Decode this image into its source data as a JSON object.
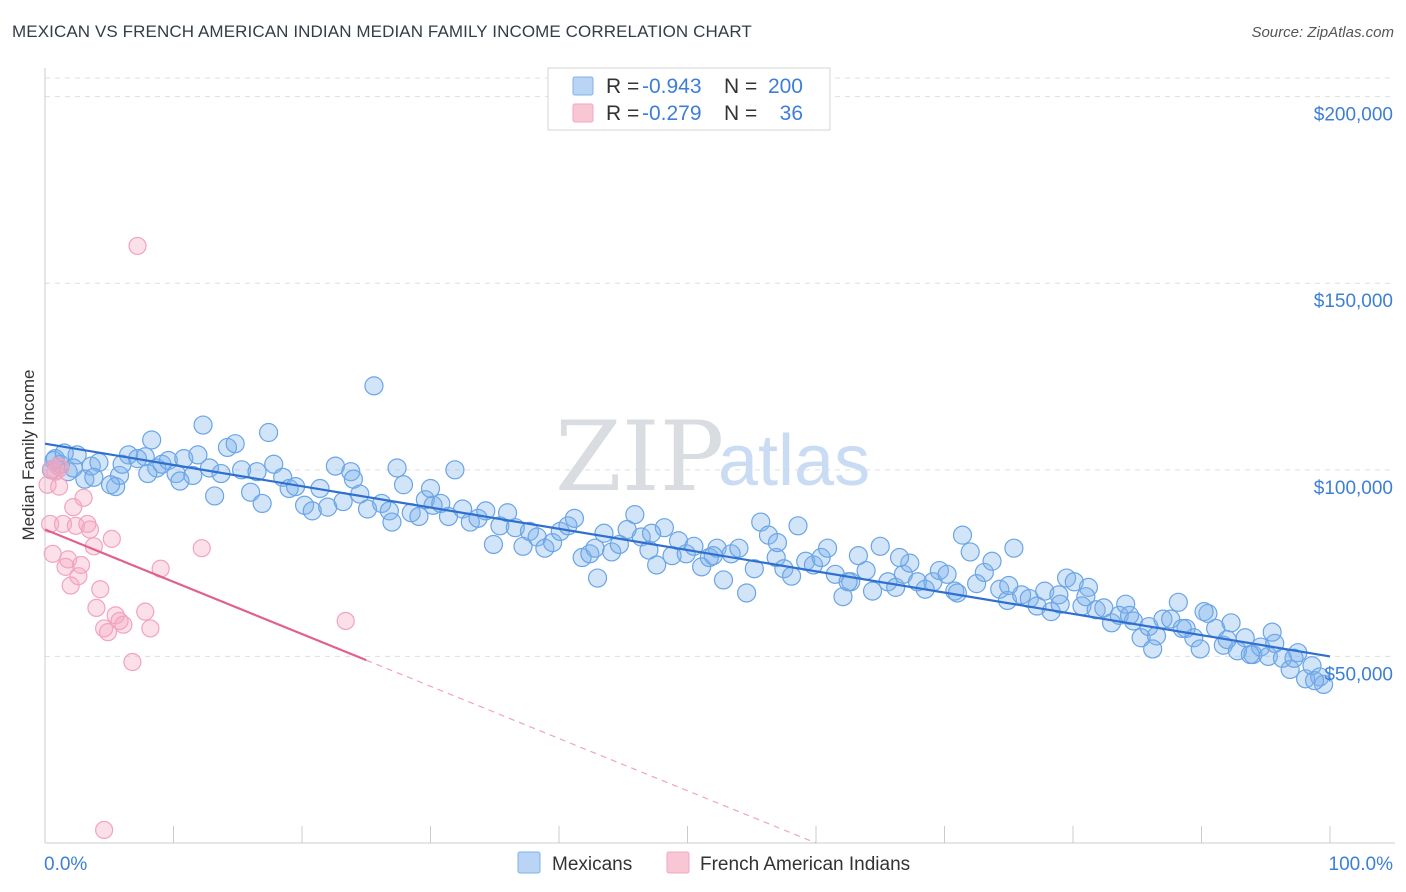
{
  "header": {
    "title": "MEXICAN VS FRENCH AMERICAN INDIAN MEDIAN FAMILY INCOME CORRELATION CHART",
    "source": "Source: ZipAtlas.com"
  },
  "watermark": {
    "zip": "ZIP",
    "atlas": "atlas"
  },
  "legend_top": {
    "rows": [
      {
        "r_label": "R = ",
        "r_value": "-0.943",
        "n_label": "N = ",
        "n_value": "200",
        "color": "#7fb1ea"
      },
      {
        "r_label": "R = ",
        "r_value": "-0.279",
        "n_label": "N = ",
        "n_value": "36",
        "color": "#f3a6c0"
      }
    ]
  },
  "legend_bottom": {
    "items": [
      {
        "label": "Mexicans",
        "color": "#7fb1ea"
      },
      {
        "label": "French American Indians",
        "color": "#f3a6c0"
      }
    ]
  },
  "chart_data": {
    "type": "scatter",
    "title": "MEXICAN VS FRENCH AMERICAN INDIAN MEDIAN FAMILY INCOME CORRELATION CHART",
    "xlabel": "",
    "ylabel": "Median Family Income",
    "xlim": [
      0,
      100
    ],
    "ylim": [
      0,
      205000
    ],
    "x_tick_labels": {
      "left": "0.0%",
      "right": "100.0%"
    },
    "y_ticks": [
      {
        "value": 50000,
        "label": "$50,000"
      },
      {
        "value": 100000,
        "label": "$100,000"
      },
      {
        "value": 150000,
        "label": "$150,000"
      },
      {
        "value": 200000,
        "label": "$200,000"
      }
    ],
    "grid": true,
    "legend_position": "top-center",
    "colors": {
      "mexicans": "#6aa5e6",
      "french": "#f2a3bd",
      "mex_line": "#2f6fd0",
      "fr_line": "#e2608d"
    },
    "series": [
      {
        "name": "Mexicans",
        "r": -0.943,
        "n": 200,
        "trend": {
          "x0": 0,
          "y0": 107000,
          "x1": 100,
          "y1": 50000
        },
        "points": [
          [
            0.5,
            100000
          ],
          [
            0.8,
            103000
          ],
          [
            1.2,
            101500
          ],
          [
            1.8,
            99500
          ],
          [
            2.5,
            104000
          ],
          [
            3.1,
            97500
          ],
          [
            3.6,
            101000
          ],
          [
            4.2,
            102000
          ],
          [
            5.5,
            95500
          ],
          [
            5.8,
            98500
          ],
          [
            6.5,
            104000
          ],
          [
            7.2,
            103000
          ],
          [
            7.8,
            103500
          ],
          [
            8.3,
            108000
          ],
          [
            8.7,
            100500
          ],
          [
            9.1,
            101500
          ],
          [
            9.6,
            102500
          ],
          [
            10.2,
            99000
          ],
          [
            10.8,
            103000
          ],
          [
            11.5,
            98500
          ],
          [
            11.9,
            104000
          ],
          [
            12.3,
            112000
          ],
          [
            12.8,
            100500
          ],
          [
            13.2,
            93000
          ],
          [
            13.7,
            99000
          ],
          [
            14.2,
            106000
          ],
          [
            14.8,
            107000
          ],
          [
            15.3,
            100000
          ],
          [
            16.0,
            94000
          ],
          [
            16.5,
            99500
          ],
          [
            16.9,
            91000
          ],
          [
            17.4,
            110000
          ],
          [
            17.8,
            101500
          ],
          [
            18.5,
            98000
          ],
          [
            19.0,
            95000
          ],
          [
            19.5,
            95500
          ],
          [
            20.2,
            90500
          ],
          [
            20.8,
            89000
          ],
          [
            21.4,
            95000
          ],
          [
            22.0,
            90000
          ],
          [
            22.6,
            101000
          ],
          [
            23.2,
            91500
          ],
          [
            23.8,
            99500
          ],
          [
            24.5,
            93500
          ],
          [
            25.1,
            89500
          ],
          [
            25.6,
            122500
          ],
          [
            26.2,
            91000
          ],
          [
            26.8,
            89000
          ],
          [
            27.4,
            100500
          ],
          [
            27.9,
            96000
          ],
          [
            28.5,
            88500
          ],
          [
            29.1,
            87500
          ],
          [
            29.6,
            92000
          ],
          [
            30.2,
            90500
          ],
          [
            30.8,
            91000
          ],
          [
            31.4,
            87500
          ],
          [
            31.9,
            100000
          ],
          [
            32.5,
            89500
          ],
          [
            33.1,
            86000
          ],
          [
            33.7,
            87000
          ],
          [
            34.3,
            89000
          ],
          [
            34.9,
            80000
          ],
          [
            35.4,
            85000
          ],
          [
            36.0,
            88500
          ],
          [
            36.6,
            84500
          ],
          [
            37.2,
            79500
          ],
          [
            37.7,
            83500
          ],
          [
            38.3,
            82000
          ],
          [
            38.9,
            79000
          ],
          [
            39.5,
            80500
          ],
          [
            40.1,
            83500
          ],
          [
            40.7,
            85000
          ],
          [
            41.2,
            87000
          ],
          [
            41.8,
            76500
          ],
          [
            42.4,
            77500
          ],
          [
            43.0,
            71000
          ],
          [
            43.5,
            83000
          ],
          [
            44.1,
            78000
          ],
          [
            44.7,
            80000
          ],
          [
            45.3,
            84000
          ],
          [
            45.9,
            88000
          ],
          [
            46.4,
            82000
          ],
          [
            47.0,
            78500
          ],
          [
            47.6,
            74500
          ],
          [
            48.2,
            84500
          ],
          [
            48.8,
            77000
          ],
          [
            49.3,
            81000
          ],
          [
            49.9,
            77500
          ],
          [
            50.5,
            79500
          ],
          [
            51.1,
            74000
          ],
          [
            51.7,
            76500
          ],
          [
            52.3,
            79000
          ],
          [
            52.8,
            70500
          ],
          [
            53.4,
            77500
          ],
          [
            54.0,
            79000
          ],
          [
            54.6,
            67000
          ],
          [
            55.2,
            73500
          ],
          [
            55.7,
            86000
          ],
          [
            56.3,
            82500
          ],
          [
            56.9,
            76500
          ],
          [
            57.5,
            73500
          ],
          [
            58.1,
            71500
          ],
          [
            58.6,
            85000
          ],
          [
            59.2,
            75500
          ],
          [
            59.8,
            74500
          ],
          [
            60.4,
            76500
          ],
          [
            60.9,
            79000
          ],
          [
            61.5,
            72000
          ],
          [
            62.1,
            66000
          ],
          [
            62.7,
            70000
          ],
          [
            63.3,
            77000
          ],
          [
            63.9,
            73000
          ],
          [
            64.4,
            67500
          ],
          [
            65.0,
            79500
          ],
          [
            65.6,
            70000
          ],
          [
            66.2,
            68500
          ],
          [
            66.8,
            72000
          ],
          [
            67.3,
            75000
          ],
          [
            67.9,
            70000
          ],
          [
            68.5,
            68000
          ],
          [
            69.1,
            70000
          ],
          [
            69.6,
            73000
          ],
          [
            70.2,
            72000
          ],
          [
            70.8,
            67500
          ],
          [
            71.4,
            82500
          ],
          [
            72.0,
            78000
          ],
          [
            72.5,
            69500
          ],
          [
            73.1,
            72500
          ],
          [
            73.7,
            75500
          ],
          [
            74.3,
            68000
          ],
          [
            74.9,
            65000
          ],
          [
            75.4,
            79000
          ],
          [
            76.0,
            66500
          ],
          [
            76.6,
            65500
          ],
          [
            77.2,
            63500
          ],
          [
            77.8,
            67500
          ],
          [
            78.3,
            62000
          ],
          [
            78.9,
            66500
          ],
          [
            79.5,
            71000
          ],
          [
            80.1,
            70000
          ],
          [
            80.7,
            63500
          ],
          [
            81.2,
            68500
          ],
          [
            81.8,
            62500
          ],
          [
            82.4,
            63000
          ],
          [
            83.0,
            59000
          ],
          [
            83.6,
            61000
          ],
          [
            84.1,
            64000
          ],
          [
            84.7,
            59500
          ],
          [
            85.3,
            55000
          ],
          [
            85.9,
            58000
          ],
          [
            86.5,
            55500
          ],
          [
            87.0,
            60000
          ],
          [
            87.6,
            60000
          ],
          [
            88.2,
            64500
          ],
          [
            88.8,
            57500
          ],
          [
            89.4,
            55000
          ],
          [
            89.9,
            52000
          ],
          [
            90.5,
            61500
          ],
          [
            91.1,
            57500
          ],
          [
            91.7,
            53000
          ],
          [
            92.3,
            59000
          ],
          [
            92.8,
            51500
          ],
          [
            93.4,
            55000
          ],
          [
            94.0,
            50500
          ],
          [
            94.6,
            52500
          ],
          [
            95.2,
            50000
          ],
          [
            95.7,
            53500
          ],
          [
            96.3,
            49500
          ],
          [
            96.9,
            46500
          ],
          [
            97.5,
            51000
          ],
          [
            98.1,
            44000
          ],
          [
            98.6,
            47500
          ],
          [
            99.2,
            44500
          ],
          [
            99.5,
            42500
          ],
          [
            0.7,
            102500
          ],
          [
            3.8,
            98000
          ],
          [
            2.2,
            100500
          ],
          [
            1.5,
            104500
          ],
          [
            5.1,
            96000
          ],
          [
            6.0,
            101500
          ],
          [
            8.0,
            99000
          ],
          [
            10.5,
            97000
          ],
          [
            24.0,
            97500
          ],
          [
            27.0,
            86000
          ],
          [
            30.0,
            95000
          ],
          [
            42.8,
            79000
          ],
          [
            47.2,
            83000
          ],
          [
            52.0,
            77000
          ],
          [
            57.0,
            80500
          ],
          [
            62.5,
            70000
          ],
          [
            66.5,
            76500
          ],
          [
            71.0,
            67000
          ],
          [
            75.0,
            69000
          ],
          [
            79.0,
            64000
          ],
          [
            81.0,
            66000
          ],
          [
            84.4,
            61000
          ],
          [
            86.2,
            52000
          ],
          [
            88.5,
            57500
          ],
          [
            90.2,
            62000
          ],
          [
            92.0,
            54500
          ],
          [
            93.8,
            50500
          ],
          [
            95.5,
            56500
          ],
          [
            97.2,
            49500
          ],
          [
            98.8,
            43500
          ]
        ]
      },
      {
        "name": "French American Indians",
        "r": -0.279,
        "n": 36,
        "trend": {
          "x0": 0,
          "y0": 84000,
          "x1": 25,
          "y1": 49000,
          "dash_to_x": 60,
          "dash_to_y": 0
        },
        "points": [
          [
            0.2,
            96000
          ],
          [
            0.4,
            85500
          ],
          [
            0.6,
            77500
          ],
          [
            0.8,
            99500
          ],
          [
            1.0,
            101000
          ],
          [
            1.2,
            100500
          ],
          [
            1.4,
            85500
          ],
          [
            1.6,
            74000
          ],
          [
            1.8,
            76000
          ],
          [
            2.0,
            69000
          ],
          [
            2.2,
            90000
          ],
          [
            2.4,
            85000
          ],
          [
            2.6,
            71500
          ],
          [
            2.8,
            74500
          ],
          [
            3.0,
            92500
          ],
          [
            3.3,
            85500
          ],
          [
            3.5,
            84000
          ],
          [
            3.8,
            79500
          ],
          [
            4.0,
            63000
          ],
          [
            4.3,
            68000
          ],
          [
            4.6,
            57500
          ],
          [
            4.9,
            56500
          ],
          [
            5.2,
            81500
          ],
          [
            5.5,
            61000
          ],
          [
            5.8,
            59500
          ],
          [
            6.1,
            58500
          ],
          [
            6.8,
            48500
          ],
          [
            7.2,
            160000
          ],
          [
            7.8,
            62000
          ],
          [
            8.2,
            57500
          ],
          [
            9.0,
            73500
          ],
          [
            12.2,
            79000
          ],
          [
            23.4,
            59500
          ],
          [
            4.6,
            3500
          ],
          [
            1.1,
            95500
          ],
          [
            0.5,
            100000
          ]
        ]
      }
    ]
  }
}
